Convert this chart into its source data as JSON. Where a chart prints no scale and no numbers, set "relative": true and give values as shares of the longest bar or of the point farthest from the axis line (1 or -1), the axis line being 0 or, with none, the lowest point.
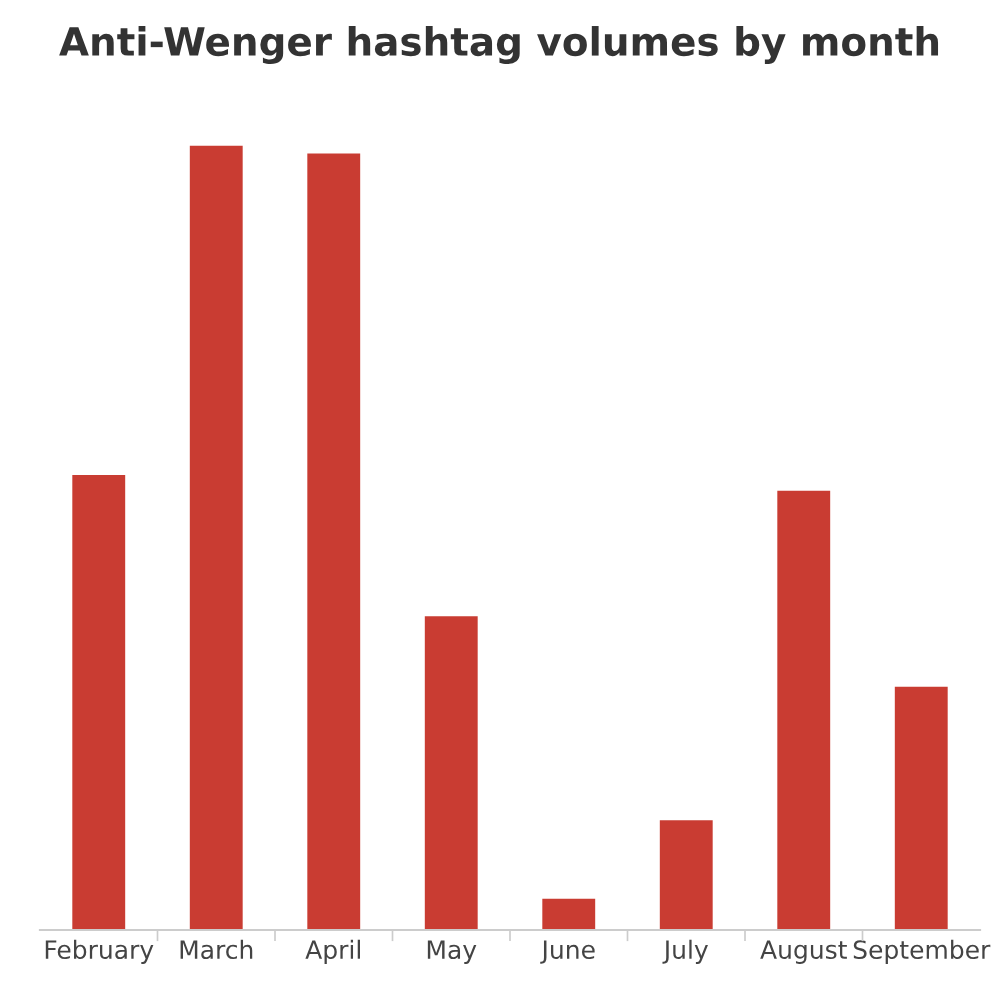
{
  "chart_data": {
    "type": "bar",
    "title": "Anti-Wenger hashtag volumes by month",
    "categories": [
      "February",
      "March",
      "April",
      "May",
      "June",
      "July",
      "August",
      "September"
    ],
    "values": [
      0.58,
      1,
      0.99,
      0.4,
      0.04,
      0.14,
      0.56,
      0.31
    ],
    "color": "#c93c32",
    "relative": true,
    "grid": false,
    "legend": false
  }
}
